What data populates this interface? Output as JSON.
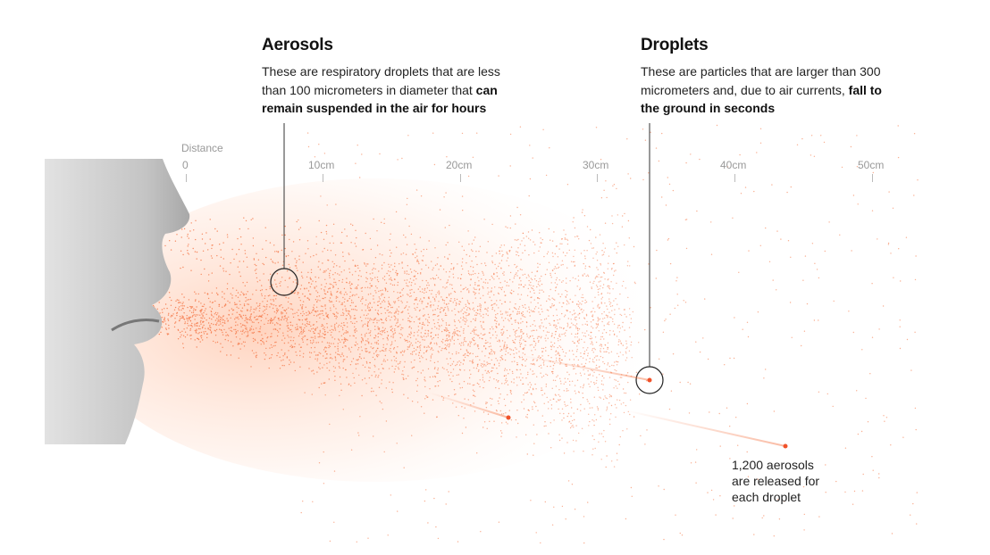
{
  "aerosols": {
    "title": "Aerosols",
    "text_plain": "These are respiratory droplets that are less than 100 micrometers in diameter that ",
    "text_bold": "can remain suspended in the air for hours"
  },
  "droplets": {
    "title": "Droplets",
    "text_plain": "These are particles that are larger than 300 micrometers and, due to air currents, ",
    "text_bold": "fall to the ground in seconds"
  },
  "axis": {
    "title": "Distance",
    "ticks": [
      "0",
      "10cm",
      "20cm",
      "30cm",
      "40cm",
      "50cm"
    ]
  },
  "annotation": {
    "lines": [
      "1,200 aerosols",
      "are released for",
      "each droplet"
    ]
  },
  "colors": {
    "particle": "#f5794a",
    "face": "#c9c9c9"
  }
}
